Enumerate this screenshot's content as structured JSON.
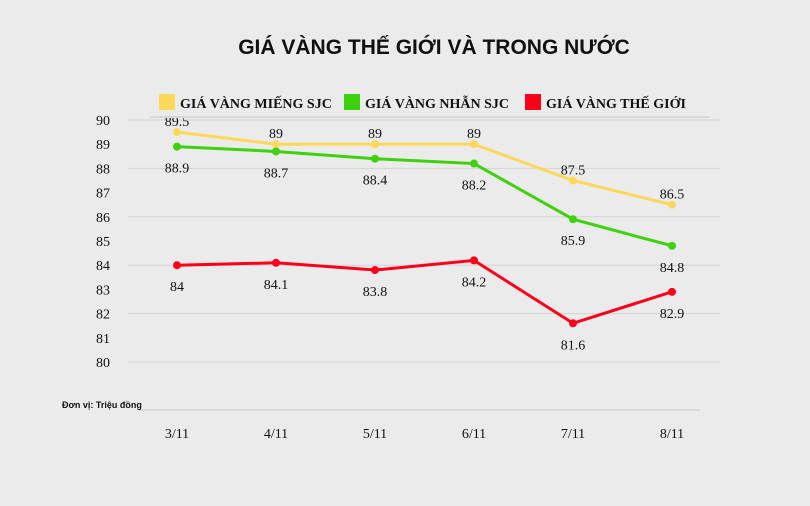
{
  "chart_data": {
    "type": "line",
    "title": "GIÁ VÀNG THẾ GIỚI VÀ TRONG NƯỚC",
    "unit_note": "Đơn vị: Triệu đồng",
    "categories": [
      "3/11",
      "4/11",
      "5/11",
      "6/11",
      "7/11",
      "8/11"
    ],
    "ylim": [
      80,
      90
    ],
    "yticks": [
      90,
      89,
      88,
      87,
      86,
      85,
      84,
      83,
      82,
      81,
      80
    ],
    "grid": [
      90,
      88,
      86,
      84,
      82,
      80
    ],
    "legend_position": "top",
    "series": [
      {
        "name": "GIÁ VÀNG MIẾNG SJC",
        "color": "#fcd85a",
        "label_pos": "above",
        "values": [
          89.5,
          89,
          89,
          89,
          87.5,
          86.5
        ],
        "labels": [
          "89.5",
          "89",
          "89",
          "89",
          "87.5",
          "86.5"
        ]
      },
      {
        "name": "GIÁ VÀNG NHẪN SJC",
        "color": "#3ed20d",
        "label_pos": "below",
        "values": [
          88.9,
          88.7,
          88.4,
          88.2,
          85.9,
          84.8
        ],
        "labels": [
          "88.9",
          "88.7",
          "88.4",
          "88.2",
          "85.9",
          "84.8"
        ]
      },
      {
        "name": "GIÁ VÀNG THẾ GIỚI",
        "color": "#fd0019",
        "label_pos": "below",
        "values": [
          84,
          84.1,
          83.8,
          84.2,
          81.6,
          82.9
        ],
        "labels": [
          "84",
          "84.1",
          "83.8",
          "84.2",
          "81.6",
          "82.9"
        ]
      }
    ]
  }
}
